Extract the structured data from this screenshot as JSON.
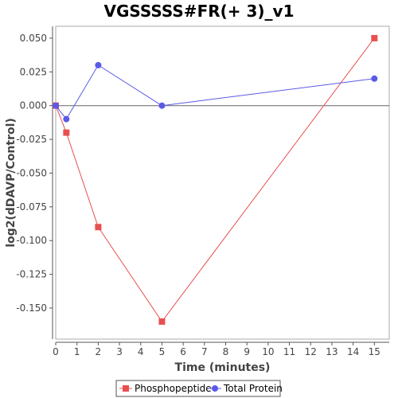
{
  "chart_data": {
    "type": "line",
    "title": "VGSSSSS#FR(+ 3)_v1",
    "xlabel": "Time (minutes)",
    "ylabel": "log2(dDAVP/Control)",
    "xlim": [
      0,
      15.7
    ],
    "ylim": [
      -0.173,
      0.0588
    ],
    "x_ticks": [
      0,
      1,
      2,
      3,
      4,
      5,
      6,
      7,
      8,
      9,
      10,
      11,
      12,
      13,
      14,
      15
    ],
    "y_ticks": [
      0.05,
      0.025,
      0,
      -0.025,
      -0.05,
      -0.075,
      -0.1,
      -0.125,
      -0.15
    ],
    "y_tick_labels": [
      "0.050",
      "0.025",
      "0.000",
      "-0.025",
      "-0.050",
      "-0.075",
      "-0.100",
      "-0.125",
      "-0.150"
    ],
    "grid": false,
    "reference_line_y": 0,
    "legend_position": "bottom",
    "series": [
      {
        "name": "Phosphopeptide",
        "color": "#e8504f",
        "marker": "square",
        "x": [
          0,
          0.5,
          2,
          5,
          15
        ],
        "y": [
          0,
          -0.02,
          -0.09,
          -0.16,
          0.05
        ]
      },
      {
        "name": "Total Protein",
        "color": "#5a5ae8",
        "marker": "circle",
        "x": [
          0,
          0.5,
          2,
          5,
          15
        ],
        "y": [
          0,
          -0.01,
          0.03,
          0,
          0.02
        ]
      }
    ]
  }
}
